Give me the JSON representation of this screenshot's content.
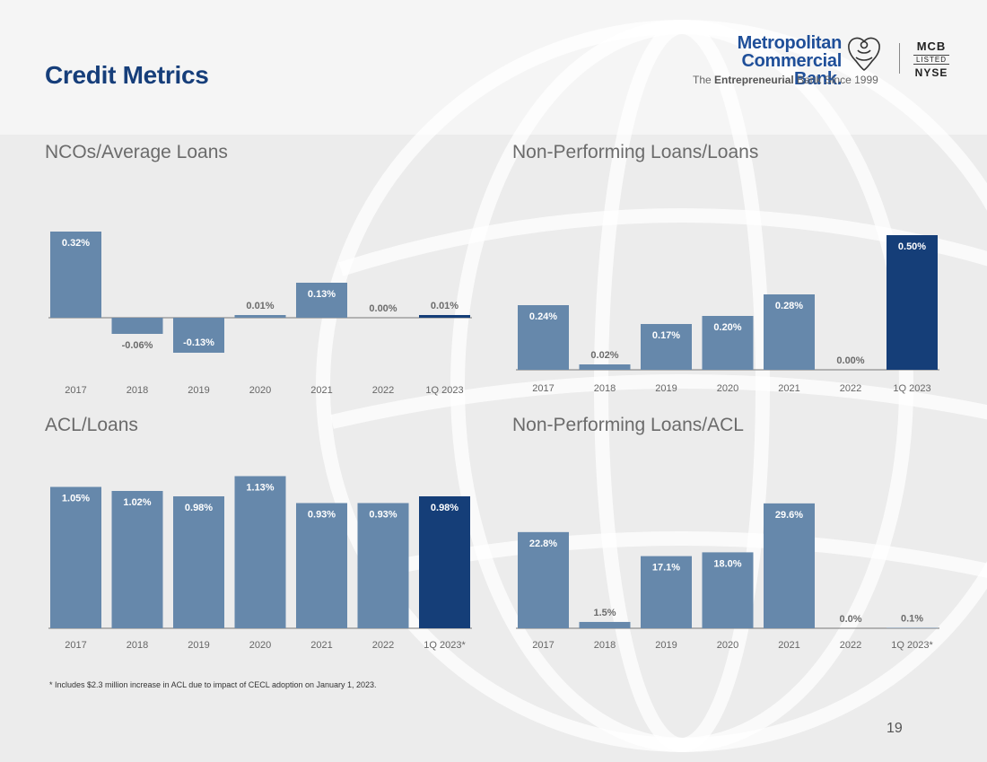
{
  "page_title": "Credit Metrics",
  "logo": {
    "line1": "Metropolitan",
    "line2": "Commercial Bank.",
    "tagline_pre": "The ",
    "tagline_bold": "Entrepreneurial",
    "tagline_post": " Bank Since 1999",
    "ticker_line1": "MCB",
    "ticker_line2": "LISTED",
    "ticker_line3": "NYSE"
  },
  "colors": {
    "bar": "#6688ab",
    "highlight": "#153e78",
    "axis": "#777777",
    "label_inside": "#ffffff",
    "label_outside": "#6b6b6b"
  },
  "chart_data": [
    {
      "type": "bar",
      "title": "NCOs/Average Loans",
      "categories": [
        "2017",
        "2018",
        "2019",
        "2020",
        "2021",
        "2022",
        "1Q 2023"
      ],
      "values": [
        0.32,
        -0.06,
        -0.13,
        0.01,
        0.13,
        0.0,
        0.01
      ],
      "labels": [
        "0.32%",
        "-0.06%",
        "-0.13%",
        "0.01%",
        "0.13%",
        "0.00%",
        "0.01%"
      ],
      "highlight_index": 6
    },
    {
      "type": "bar",
      "title": "Non-Performing Loans/Loans",
      "categories": [
        "2017",
        "2018",
        "2019",
        "2020",
        "2021",
        "2022",
        "1Q 2023"
      ],
      "values": [
        0.24,
        0.02,
        0.17,
        0.2,
        0.28,
        0.0,
        0.5
      ],
      "labels": [
        "0.24%",
        "0.02%",
        "0.17%",
        "0.20%",
        "0.28%",
        "0.00%",
        "0.50%"
      ],
      "highlight_index": 6
    },
    {
      "type": "bar",
      "title": "ACL/Loans",
      "categories": [
        "2017",
        "2018",
        "2019",
        "2020",
        "2021",
        "2022",
        "1Q 2023*"
      ],
      "values": [
        1.05,
        1.02,
        0.98,
        1.13,
        0.93,
        0.93,
        0.98
      ],
      "labels": [
        "1.05%",
        "1.02%",
        "0.98%",
        "1.13%",
        "0.93%",
        "0.93%",
        "0.98%"
      ],
      "highlight_index": 6
    },
    {
      "type": "bar",
      "title": "Non-Performing Loans/ACL",
      "categories": [
        "2017",
        "2018",
        "2019",
        "2020",
        "2021",
        "2022",
        "1Q 2023*"
      ],
      "values": [
        22.8,
        1.5,
        17.1,
        18.0,
        29.6,
        0.0,
        0.1
      ],
      "labels": [
        "22.8%",
        "1.5%",
        "17.1%",
        "18.0%",
        "29.6%",
        "0.0%",
        "0.1%"
      ],
      "highlight_index": -1
    }
  ],
  "footnote": "* Includes $2.3 million increase in ACL due to impact of CECL adoption on January  1, 2023.",
  "page_number": "19"
}
